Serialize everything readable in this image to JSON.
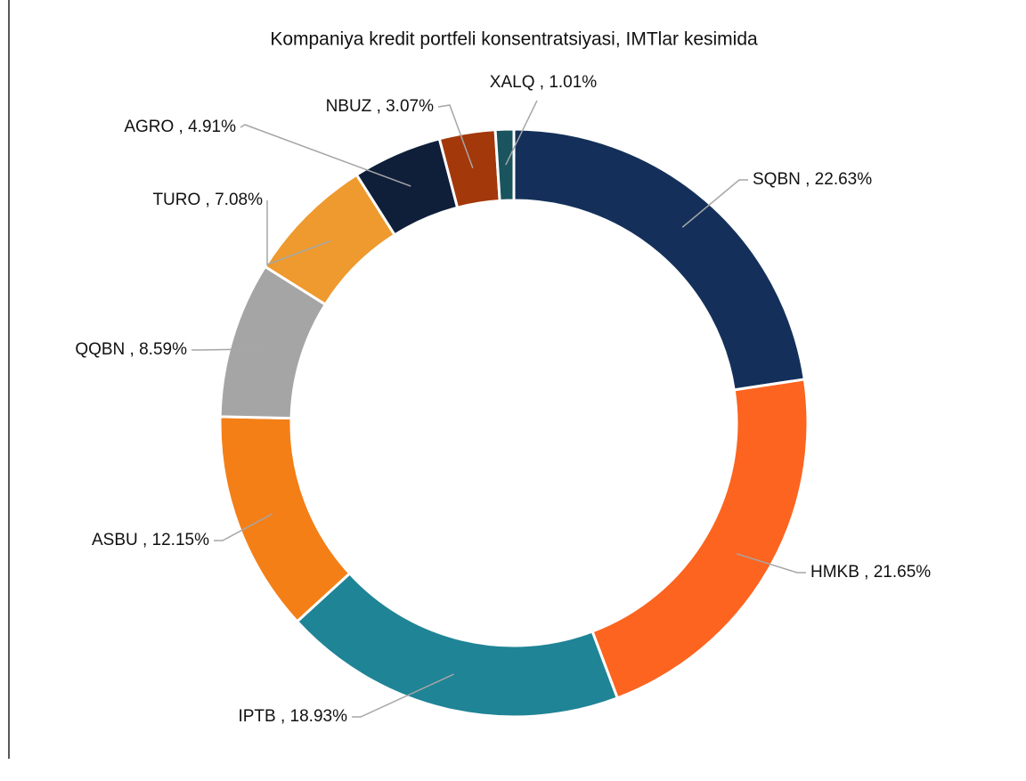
{
  "chart_data": {
    "type": "donut",
    "title": "Kompaniya kredit portfeli konsentratsiyasi, IMTlar kesimida",
    "categories": [
      "SQBN",
      "HMKB",
      "IPTB",
      "ASBU",
      "QQBN",
      "TURO",
      "AGRO",
      "NBUZ",
      "XALQ"
    ],
    "values": [
      22.63,
      21.65,
      18.93,
      12.15,
      8.59,
      7.08,
      4.91,
      3.07,
      1.01
    ],
    "value_labels": [
      "SQBN , 22.63%",
      "HMKB , 21.65%",
      "IPTB , 18.93%",
      "ASBU , 12.15%",
      "QQBN , 8.59%",
      "TURO , 7.08%",
      "AGRO , 4.91%",
      "NBUZ , 3.07%",
      "XALQ , 1.01%"
    ],
    "colors": [
      "#14305a",
      "#fc6420",
      "#1f8496",
      "#f47f17",
      "#a5a5a5",
      "#ee9a2e",
      "#0f1f3a",
      "#a3380b",
      "#1a545e"
    ]
  }
}
